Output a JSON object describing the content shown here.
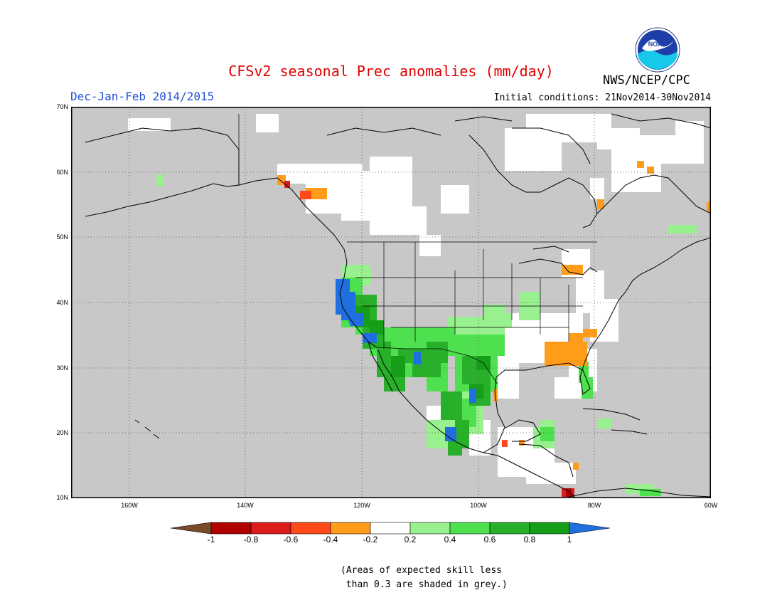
{
  "header": {
    "title": "CFSv2 seasonal Prec anomalies (mm/day)",
    "season": "Dec-Jan-Feb 2014/2015",
    "initial_conditions": "Initial conditions: 21Nov2014-30Nov2014",
    "agency": "NWS/NCEP/CPC",
    "logo_text": "NOAA"
  },
  "map": {
    "region": "North America",
    "lat_range": [
      10,
      70
    ],
    "lon_range": [
      -170,
      -60
    ],
    "lat_ticks": [
      "70N",
      "60N",
      "50N",
      "40N",
      "30N",
      "20N",
      "10N"
    ],
    "lon_ticks": [
      "160W",
      "140W",
      "120W",
      "100W",
      "80W",
      "60W"
    ],
    "grid_lines": "dotted",
    "skill_mask_color": "#c8c8c8",
    "land_no_anomaly_color": "#ffffff"
  },
  "colorbar": {
    "tick_labels": [
      "-1",
      "-0.8",
      "-0.6",
      "-0.4",
      "-0.2",
      "0.2",
      "0.4",
      "0.6",
      "0.8",
      "1"
    ],
    "colors": [
      "#7a4a2a",
      "#b00000",
      "#dd1b1b",
      "#ff4b1a",
      "#ff9d1a",
      "#ffffff",
      "#99f08e",
      "#4ee04e",
      "#28b02a",
      "#159e18",
      "#1f6fe0"
    ]
  },
  "footnote": {
    "line1": "(Areas of expected skill less",
    "line2": " than 0.3 are shaded in grey.)"
  }
}
